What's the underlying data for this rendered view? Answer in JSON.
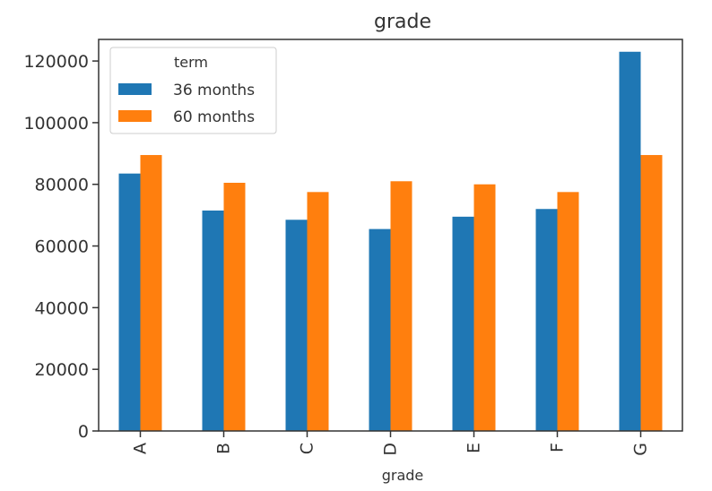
{
  "chart_data": {
    "type": "bar",
    "title": "grade",
    "xlabel": "grade",
    "ylabel": "",
    "categories": [
      "A",
      "B",
      "C",
      "D",
      "E",
      "F",
      "G"
    ],
    "series": [
      {
        "name": "36 months",
        "color": "#1f77b4",
        "values": [
          83500,
          71500,
          68500,
          65500,
          69500,
          72000,
          123000
        ]
      },
      {
        "name": "60 months",
        "color": "#ff7f0e",
        "values": [
          89500,
          80500,
          77500,
          81000,
          80000,
          77500,
          89500
        ]
      }
    ],
    "yticks": [
      "0",
      "20000",
      "40000",
      "60000",
      "80000",
      "100000",
      "120000"
    ],
    "ylim": [
      0,
      127000
    ],
    "legend": {
      "title": "term",
      "placement": "top-left"
    },
    "grid": false
  }
}
